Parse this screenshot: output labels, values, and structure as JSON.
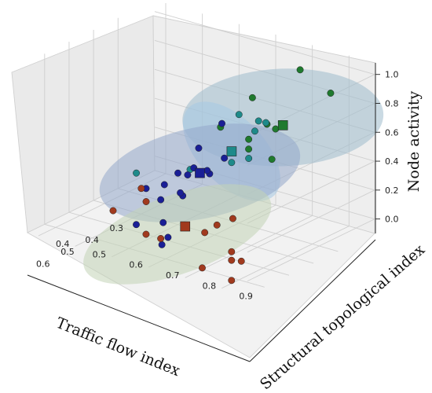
{
  "chart_data": {
    "type": "scatter",
    "projection": "3d",
    "xlabel": "Traffic flow index",
    "ylabel": "Structural topological index",
    "zlabel": "Node activity",
    "xlim": [
      0.15,
      0.67
    ],
    "ylim": [
      0.37,
      0.97
    ],
    "zlim": [
      -0.1,
      1.08
    ],
    "xticks": [
      "0.3",
      "0.4",
      "0.5",
      "0.6"
    ],
    "yticks": [
      "0.4",
      "0.5",
      "0.6",
      "0.7",
      "0.8",
      "0.9"
    ],
    "zticks": [
      "0.0",
      "0.2",
      "0.4",
      "0.6",
      "0.8",
      "1.0"
    ],
    "grid": true,
    "legend": "none",
    "series": [
      {
        "color": "#1f7a2e",
        "centroid": [
          0.45,
          0.92,
          0.86
        ],
        "ellipse_color": "#9fbccc",
        "points": [
          [
            0.2,
            0.8,
            0.95
          ],
          [
            0.3,
            0.95,
            0.98
          ],
          [
            0.32,
            0.75,
            0.82
          ],
          [
            0.53,
            0.88,
            0.8
          ],
          [
            0.56,
            0.95,
            0.98
          ],
          [
            0.57,
            0.97,
            0.76
          ],
          [
            0.6,
            0.85,
            0.92
          ],
          [
            0.62,
            0.94,
            0.85
          ],
          [
            0.45,
            0.9,
            0.82
          ]
        ]
      },
      {
        "color": "#1e8a8a",
        "centroid": [
          0.36,
          0.72,
          0.46
        ],
        "ellipse_color": "#a6c8e4",
        "points": [
          [
            0.22,
            0.7,
            0.54
          ],
          [
            0.33,
            0.72,
            0.69
          ],
          [
            0.34,
            0.8,
            0.7
          ],
          [
            0.44,
            0.82,
            0.55
          ],
          [
            0.48,
            0.8,
            0.54
          ],
          [
            0.42,
            0.5,
            0.2
          ],
          [
            0.32,
            0.58,
            0.2
          ],
          [
            0.34,
            0.77,
            0.62
          ]
        ]
      },
      {
        "color": "#1a1f96",
        "centroid": [
          0.4,
          0.66,
          0.3
        ],
        "ellipse_color": "#93a8cb",
        "points": [
          [
            0.22,
            0.6,
            0.45
          ],
          [
            0.24,
            0.55,
            0.26
          ],
          [
            0.22,
            0.48,
            0.02
          ],
          [
            0.26,
            0.55,
            0.14
          ],
          [
            0.3,
            0.66,
            0.32
          ],
          [
            0.36,
            0.6,
            0.21
          ],
          [
            0.42,
            0.7,
            0.34
          ],
          [
            0.44,
            0.58,
            0.09
          ],
          [
            0.46,
            0.72,
            0.41
          ],
          [
            0.47,
            0.66,
            0.2
          ],
          [
            0.58,
            0.68,
            0.12
          ],
          [
            0.62,
            0.72,
            0.08
          ],
          [
            0.63,
            0.71,
            0.03
          ],
          [
            0.42,
            0.62,
            0.15
          ],
          [
            0.5,
            0.63,
            0.28
          ],
          [
            0.38,
            0.5,
            0.06
          ],
          [
            0.57,
            0.6,
            0.04
          ]
        ]
      },
      {
        "color": "#a13a1e",
        "centroid": [
          0.46,
          0.66,
          -0.02
        ],
        "ellipse_color": "#c3d3b6",
        "points": [
          [
            0.4,
            0.75,
            0.05
          ],
          [
            0.42,
            0.72,
            0.0
          ],
          [
            0.44,
            0.7,
            -0.05
          ],
          [
            0.6,
            0.88,
            0.08
          ],
          [
            0.62,
            0.92,
            0.06
          ],
          [
            0.63,
            0.9,
            0.06
          ],
          [
            0.66,
            0.92,
            -0.04
          ],
          [
            0.53,
            0.6,
            -0.06
          ],
          [
            0.28,
            0.42,
            -0.08
          ],
          [
            0.35,
            0.48,
            -0.07
          ],
          [
            0.44,
            0.45,
            -0.08
          ],
          [
            0.5,
            0.62,
            -0.1
          ],
          [
            0.6,
            0.8,
            -0.09
          ]
        ]
      }
    ]
  }
}
